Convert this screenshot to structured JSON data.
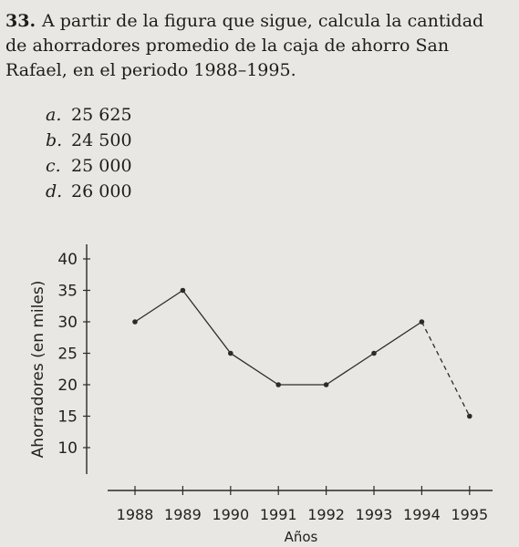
{
  "question": {
    "number": "33.",
    "text": "A partir de la figura que sigue, calcula la cantidad de ahorradores promedio de la caja de ahorro San Rafael, en el periodo 1988–1995."
  },
  "options": [
    {
      "letter": "a.",
      "value": "25 625"
    },
    {
      "letter": "b.",
      "value": "24 500"
    },
    {
      "letter": "c.",
      "value": "25 000"
    },
    {
      "letter": "d.",
      "value": "26 000"
    }
  ],
  "chart_data": {
    "type": "line",
    "title": "",
    "xlabel": "Años",
    "ylabel": "Ahorradores (en miles)",
    "x": [
      1988,
      1989,
      1990,
      1991,
      1992,
      1993,
      1994,
      1995
    ],
    "categories": [
      "1988",
      "1989",
      "1990",
      "1991",
      "1992",
      "1993",
      "1994",
      "1995"
    ],
    "yticks": [
      10,
      15,
      20,
      25,
      30,
      35,
      40
    ],
    "ylim": [
      5,
      40
    ],
    "grid": false,
    "series": [
      {
        "values": [
          30,
          35,
          25,
          20,
          20,
          25,
          30,
          15
        ]
      }
    ]
  }
}
